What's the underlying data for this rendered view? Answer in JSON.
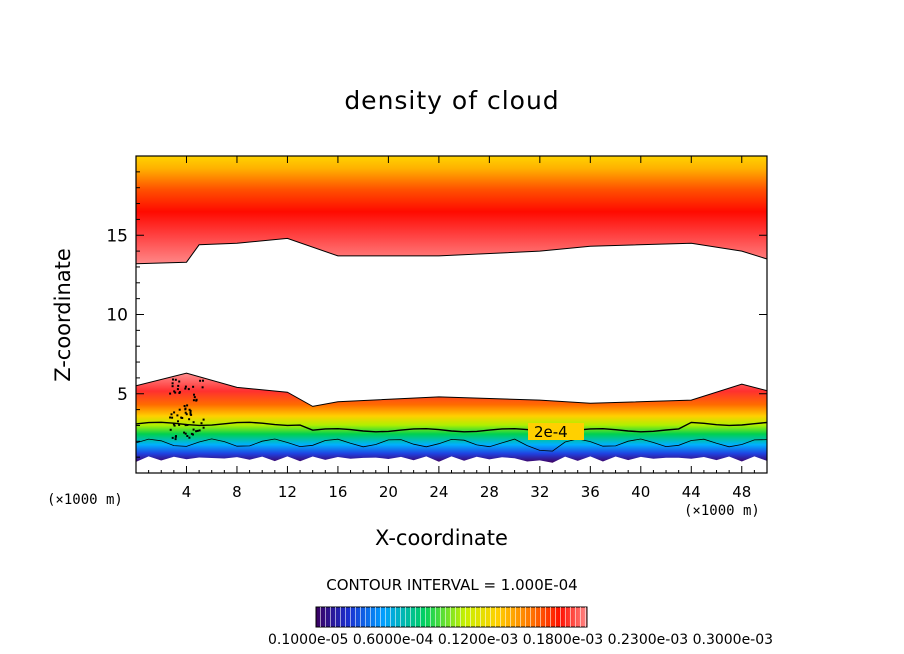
{
  "chart_data": {
    "type": "heatmap",
    "title": "density of cloud",
    "xlabel": "X-coordinate",
    "ylabel": "Z-coordinate",
    "x_unit": "(×1000 m)",
    "x_unit_right": "(×1000 m)",
    "xlim": [
      0,
      50
    ],
    "ylim": [
      0,
      20
    ],
    "x_ticks": [
      "4",
      "8",
      "12",
      "16",
      "20",
      "24",
      "28",
      "32",
      "36",
      "40",
      "44",
      "48"
    ],
    "y_ticks": [
      "5",
      "10",
      "15"
    ],
    "contour_label": "2e-4",
    "contour_interval": "CONTOUR INTERVAL = 1.000E-04",
    "colorbar_labels": "0.1000e-05  0.6000e-04  0.1200e-03  0.1800e-03  0.2300e-03  0.3000e-03",
    "colorscale": [
      "#3a0060",
      "#1a2fd0",
      "#00a0ff",
      "#00d060",
      "#c8f000",
      "#ffd000",
      "#ff7000",
      "#ff1000",
      "#ff8888"
    ],
    "lower_cloud_top_profile": [
      [
        0,
        5.5
      ],
      [
        4,
        6.3
      ],
      [
        8,
        5.4
      ],
      [
        12,
        5.1
      ],
      [
        14,
        4.2
      ],
      [
        16,
        4.5
      ],
      [
        24,
        4.8
      ],
      [
        32,
        4.6
      ],
      [
        36,
        4.4
      ],
      [
        44,
        4.6
      ],
      [
        48,
        5.6
      ],
      [
        50,
        5.2
      ]
    ],
    "upper_cloud_base_profile": [
      [
        0,
        13.2
      ],
      [
        4,
        13.3
      ],
      [
        5,
        14.4
      ],
      [
        8,
        14.5
      ],
      [
        12,
        14.8
      ],
      [
        16,
        13.7
      ],
      [
        24,
        13.7
      ],
      [
        32,
        14.0
      ],
      [
        36,
        14.3
      ],
      [
        44,
        14.5
      ],
      [
        48,
        14.0
      ],
      [
        50,
        13.5
      ]
    ]
  }
}
